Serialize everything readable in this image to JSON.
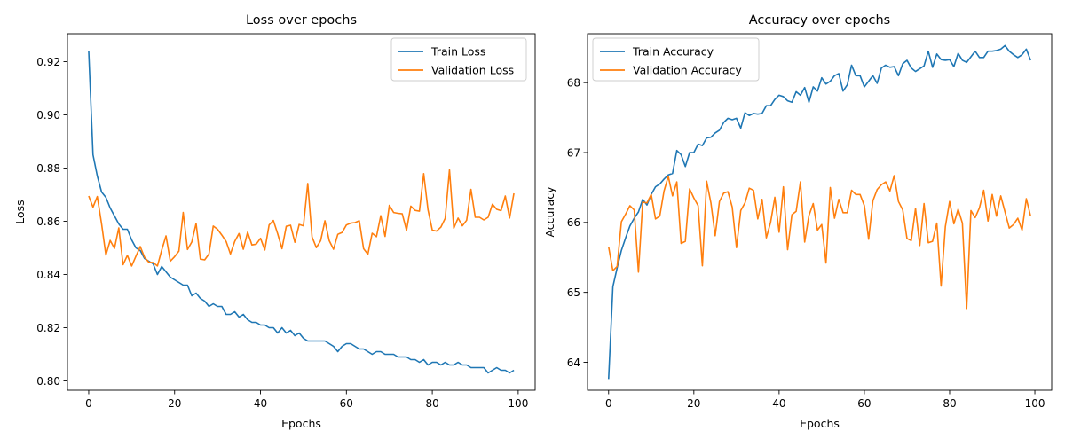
{
  "chart_data": [
    {
      "type": "line",
      "title": "Loss over epochs",
      "xlabel": "Epochs",
      "ylabel": "Loss",
      "xlim": [
        -4.95,
        103.95
      ],
      "ylim": [
        0.7965,
        0.9305
      ],
      "xticks": [
        0,
        20,
        40,
        60,
        80,
        100
      ],
      "xtick_labels": [
        "0",
        "20",
        "40",
        "60",
        "80",
        "100"
      ],
      "yticks": [
        0.8,
        0.82,
        0.84,
        0.86,
        0.88,
        0.9,
        0.92
      ],
      "ytick_labels": [
        "0.80",
        "0.82",
        "0.84",
        "0.86",
        "0.88",
        "0.90",
        "0.92"
      ],
      "grid": false,
      "legend": "upper right",
      "x": [
        0,
        1,
        2,
        3,
        4,
        5,
        6,
        7,
        8,
        9,
        10,
        11,
        12,
        13,
        14,
        15,
        16,
        17,
        18,
        19,
        20,
        21,
        22,
        23,
        24,
        25,
        26,
        27,
        28,
        29,
        30,
        31,
        32,
        33,
        34,
        35,
        36,
        37,
        38,
        39,
        40,
        41,
        42,
        43,
        44,
        45,
        46,
        47,
        48,
        49,
        50,
        51,
        52,
        53,
        54,
        55,
        56,
        57,
        58,
        59,
        60,
        61,
        62,
        63,
        64,
        65,
        66,
        67,
        68,
        69,
        70,
        71,
        72,
        73,
        74,
        75,
        76,
        77,
        78,
        79,
        80,
        81,
        82,
        83,
        84,
        85,
        86,
        87,
        88,
        89,
        90,
        91,
        92,
        93,
        94,
        95,
        96,
        97,
        98,
        99
      ],
      "series": [
        {
          "name": "Train Loss",
          "color": "#1f77b4",
          "values": [
            0.924,
            0.885,
            0.877,
            0.871,
            0.869,
            0.865,
            0.862,
            0.859,
            0.857,
            0.857,
            0.853,
            0.85,
            0.849,
            0.846,
            0.845,
            0.844,
            0.84,
            0.843,
            0.841,
            0.839,
            0.838,
            0.837,
            0.836,
            0.836,
            0.832,
            0.833,
            0.831,
            0.83,
            0.828,
            0.829,
            0.828,
            0.828,
            0.825,
            0.825,
            0.826,
            0.824,
            0.825,
            0.823,
            0.822,
            0.822,
            0.821,
            0.821,
            0.82,
            0.82,
            0.818,
            0.82,
            0.818,
            0.819,
            0.817,
            0.818,
            0.816,
            0.815,
            0.815,
            0.815,
            0.815,
            0.815,
            0.814,
            0.813,
            0.811,
            0.813,
            0.814,
            0.814,
            0.813,
            0.812,
            0.812,
            0.811,
            0.81,
            0.811,
            0.811,
            0.81,
            0.81,
            0.81,
            0.809,
            0.809,
            0.809,
            0.808,
            0.808,
            0.807,
            0.808,
            0.806,
            0.807,
            0.807,
            0.806,
            0.807,
            0.806,
            0.806,
            0.807,
            0.806,
            0.806,
            0.805,
            0.805,
            0.805,
            0.805,
            0.803,
            0.804,
            0.805,
            0.804,
            0.804,
            0.803,
            0.804
          ]
        },
        {
          "name": "Validation Loss",
          "color": "#ff7f0e",
          "values": [
            0.8695,
            0.8653,
            0.8693,
            0.859,
            0.8473,
            0.8528,
            0.8498,
            0.8575,
            0.8437,
            0.8472,
            0.8432,
            0.8469,
            0.8505,
            0.8465,
            0.8446,
            0.8445,
            0.8432,
            0.8492,
            0.8545,
            0.845,
            0.8467,
            0.8488,
            0.8633,
            0.8494,
            0.8522,
            0.8592,
            0.8458,
            0.8455,
            0.8477,
            0.8582,
            0.857,
            0.8548,
            0.8524,
            0.8477,
            0.8524,
            0.8554,
            0.8495,
            0.8559,
            0.8511,
            0.8514,
            0.8536,
            0.8492,
            0.8586,
            0.8603,
            0.8553,
            0.8497,
            0.8581,
            0.8585,
            0.8521,
            0.8588,
            0.8583,
            0.8742,
            0.8541,
            0.8501,
            0.8527,
            0.8602,
            0.8527,
            0.8495,
            0.8551,
            0.8558,
            0.8586,
            0.8593,
            0.8595,
            0.8602,
            0.8497,
            0.8476,
            0.8555,
            0.8542,
            0.8621,
            0.8543,
            0.866,
            0.8633,
            0.863,
            0.8628,
            0.8566,
            0.8657,
            0.8641,
            0.8638,
            0.8779,
            0.8643,
            0.8567,
            0.8563,
            0.8578,
            0.8611,
            0.8793,
            0.8574,
            0.8612,
            0.8583,
            0.8604,
            0.872,
            0.8615,
            0.8615,
            0.8605,
            0.8615,
            0.8664,
            0.8645,
            0.864,
            0.8695,
            0.8612,
            0.8705
          ]
        }
      ]
    },
    {
      "type": "line",
      "title": "Accuracy over epochs",
      "xlabel": "Epochs",
      "ylabel": "Accuracy",
      "xlim": [
        -4.95,
        103.95
      ],
      "ylim": [
        63.6,
        68.7
      ],
      "xticks": [
        0,
        20,
        40,
        60,
        80,
        100
      ],
      "xtick_labels": [
        "0",
        "20",
        "40",
        "60",
        "80",
        "100"
      ],
      "yticks": [
        64,
        65,
        66,
        67,
        68
      ],
      "ytick_labels": [
        "64",
        "65",
        "66",
        "67",
        "68"
      ],
      "grid": false,
      "legend": "upper left",
      "x": [
        0,
        1,
        2,
        3,
        4,
        5,
        6,
        7,
        8,
        9,
        10,
        11,
        12,
        13,
        14,
        15,
        16,
        17,
        18,
        19,
        20,
        21,
        22,
        23,
        24,
        25,
        26,
        27,
        28,
        29,
        30,
        31,
        32,
        33,
        34,
        35,
        36,
        37,
        38,
        39,
        40,
        41,
        42,
        43,
        44,
        45,
        46,
        47,
        48,
        49,
        50,
        51,
        52,
        53,
        54,
        55,
        56,
        57,
        58,
        59,
        60,
        61,
        62,
        63,
        64,
        65,
        66,
        67,
        68,
        69,
        70,
        71,
        72,
        73,
        74,
        75,
        76,
        77,
        78,
        79,
        80,
        81,
        82,
        83,
        84,
        85,
        86,
        87,
        88,
        89,
        90,
        91,
        92,
        93,
        94,
        95,
        96,
        97,
        98,
        99
      ],
      "series": [
        {
          "name": "Train Accuracy",
          "color": "#1f77b4",
          "values": [
            63.76,
            65.08,
            65.35,
            65.6,
            65.78,
            65.95,
            66.06,
            66.15,
            66.33,
            66.25,
            66.4,
            66.51,
            66.55,
            66.62,
            66.68,
            66.7,
            67.03,
            66.97,
            66.8,
            67.0,
            67.0,
            67.12,
            67.1,
            67.21,
            67.22,
            67.28,
            67.32,
            67.43,
            67.49,
            67.47,
            67.49,
            67.35,
            67.57,
            67.53,
            67.56,
            67.55,
            67.56,
            67.67,
            67.67,
            67.76,
            67.82,
            67.8,
            67.74,
            67.72,
            67.87,
            67.82,
            67.93,
            67.72,
            67.94,
            67.88,
            68.07,
            67.98,
            68.02,
            68.1,
            68.13,
            67.88,
            67.97,
            68.25,
            68.1,
            68.1,
            67.94,
            68.02,
            68.1,
            67.99,
            68.21,
            68.25,
            68.22,
            68.23,
            68.1,
            68.27,
            68.32,
            68.21,
            68.16,
            68.2,
            68.24,
            68.45,
            68.22,
            68.41,
            68.33,
            68.32,
            68.33,
            68.23,
            68.42,
            68.32,
            68.29,
            68.37,
            68.45,
            68.36,
            68.36,
            68.45,
            68.45,
            68.46,
            68.48,
            68.53,
            68.45,
            68.4,
            68.36,
            68.4,
            68.48,
            68.32
          ]
        },
        {
          "name": "Validation Accuracy",
          "color": "#ff7f0e",
          "values": [
            65.65,
            65.31,
            65.37,
            66.01,
            66.12,
            66.24,
            66.18,
            65.29,
            66.29,
            66.28,
            66.4,
            66.05,
            66.09,
            66.45,
            66.66,
            66.38,
            66.58,
            65.7,
            65.73,
            66.48,
            66.35,
            66.24,
            65.38,
            66.59,
            66.28,
            65.81,
            66.3,
            66.42,
            66.44,
            66.22,
            65.64,
            66.17,
            66.28,
            66.49,
            66.46,
            66.05,
            66.33,
            65.78,
            66.0,
            66.36,
            65.86,
            66.51,
            65.61,
            66.11,
            66.16,
            66.58,
            65.72,
            66.1,
            66.27,
            65.89,
            65.97,
            65.42,
            66.5,
            66.06,
            66.33,
            66.14,
            66.14,
            66.46,
            66.4,
            66.4,
            66.24,
            65.76,
            66.31,
            66.47,
            66.54,
            66.58,
            66.45,
            66.67,
            66.3,
            66.18,
            65.77,
            65.74,
            66.2,
            65.67,
            66.27,
            65.71,
            65.73,
            65.99,
            65.09,
            65.94,
            66.3,
            65.98,
            66.19,
            65.99,
            64.77,
            66.17,
            66.07,
            66.21,
            66.46,
            66.02,
            66.4,
            66.09,
            66.38,
            66.15,
            65.92,
            65.97,
            66.06,
            65.89,
            66.34,
            66.09
          ]
        }
      ]
    }
  ]
}
